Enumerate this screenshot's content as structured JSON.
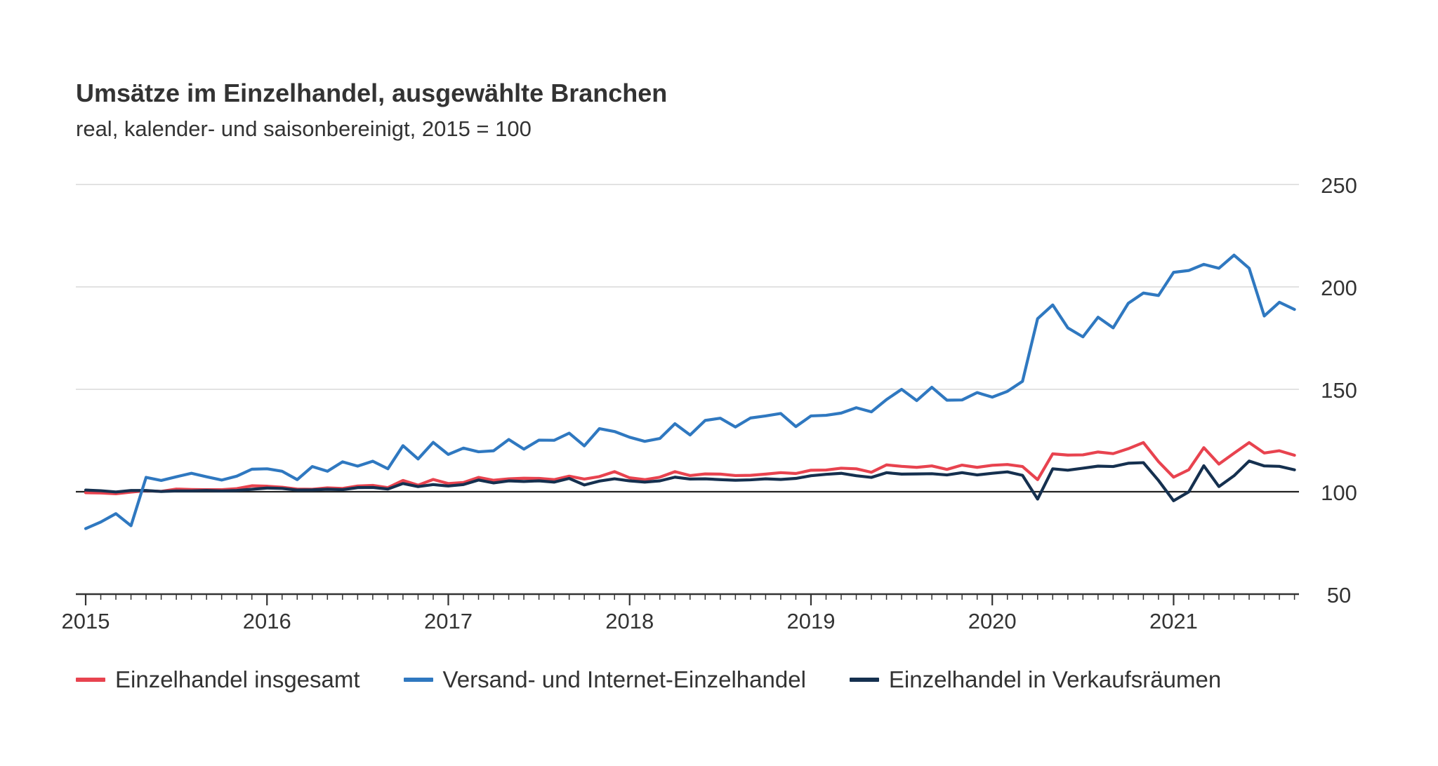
{
  "title": "Umsätze im Einzelhandel, ausgewählte Branchen",
  "subtitle": "real, kalender- und saisonbereinigt, 2015 = 100",
  "chart_data": {
    "type": "line",
    "title": "Umsätze im Einzelhandel, ausgewählte Branchen",
    "subtitle": "real, kalender- und saisonbereinigt, 2015 = 100",
    "x_start": "2015-01",
    "x_end": "2021-09",
    "x_ticks": [
      "2015",
      "2016",
      "2017",
      "2018",
      "2019",
      "2020",
      "2021"
    ],
    "y_ticks": [
      50,
      100,
      150,
      200,
      250
    ],
    "ylim": [
      50,
      250
    ],
    "baseline": 100,
    "grid": true,
    "y_axis_position": "right",
    "legend_position": "bottom",
    "series": [
      {
        "name": "Einzelhandel insgesamt",
        "color": "#e8434f",
        "values": [
          99.5,
          99.4,
          99.0,
          99.8,
          100.5,
          100.2,
          101.3,
          101.1,
          101.0,
          101.0,
          101.5,
          102.9,
          102.7,
          102.2,
          101.3,
          101.2,
          101.9,
          101.6,
          102.8,
          103.1,
          102.0,
          105.5,
          103.2,
          106.0,
          104.0,
          104.5,
          107.0,
          105.6,
          106.3,
          106.6,
          106.5,
          105.9,
          107.6,
          106.2,
          107.4,
          109.8,
          106.8,
          105.9,
          107.1,
          109.8,
          107.9,
          108.7,
          108.6,
          107.9,
          108.0,
          108.6,
          109.3,
          108.9,
          110.5,
          110.6,
          111.5,
          111.2,
          109.5,
          113.1,
          112.4,
          111.9,
          112.6,
          110.9,
          113.0,
          111.9,
          112.9,
          113.3,
          112.3,
          105.9,
          118.5,
          117.9,
          118.0,
          119.4,
          118.6,
          121.0,
          124.0,
          114.7,
          107.1,
          110.7,
          121.5,
          113.5,
          118.8,
          124.0,
          118.9,
          120.0,
          117.8
        ]
      },
      {
        "name": "Versand- und Internet-Einzelhandel",
        "color": "#2f78c0",
        "values": [
          82.0,
          85.2,
          89.3,
          83.4,
          107.0,
          105.5,
          107.3,
          109.0,
          107.3,
          105.7,
          107.6,
          111.0,
          111.2,
          110.0,
          105.9,
          112.3,
          110.0,
          114.6,
          112.5,
          114.9,
          111.2,
          122.5,
          116.0,
          124.1,
          118.2,
          121.3,
          119.5,
          120.0,
          125.5,
          120.8,
          125.2,
          125.1,
          128.6,
          122.4,
          130.8,
          129.4,
          126.6,
          124.6,
          126.0,
          133.2,
          127.7,
          134.8,
          135.9,
          131.6,
          136.0,
          137.0,
          138.2,
          131.8,
          137.0,
          137.3,
          138.4,
          141.0,
          139.0,
          145.0,
          150.0,
          144.5,
          151.0,
          144.7,
          144.8,
          148.4,
          146.2,
          149.0,
          153.9,
          184.5,
          191.2,
          180.0,
          175.6,
          185.2,
          180.0,
          192.0,
          197.0,
          195.8,
          207.1,
          208.0,
          211.0,
          209.1,
          215.5,
          209.1,
          185.8,
          192.5,
          189.0
        ]
      },
      {
        "name": "Einzelhandel in Verkaufsräumen",
        "color": "#15304f",
        "values": [
          100.8,
          100.5,
          99.9,
          100.6,
          100.6,
          100.1,
          100.4,
          100.4,
          100.6,
          100.4,
          100.6,
          101.2,
          101.8,
          101.6,
          100.8,
          100.9,
          101.2,
          101.0,
          102.0,
          102.1,
          101.3,
          104.0,
          102.5,
          103.5,
          102.8,
          103.5,
          105.7,
          104.3,
          105.3,
          105.0,
          105.3,
          104.7,
          106.5,
          103.3,
          105.2,
          106.3,
          105.3,
          104.7,
          105.3,
          107.1,
          106.2,
          106.3,
          105.9,
          105.6,
          105.8,
          106.3,
          106.0,
          106.5,
          107.8,
          108.5,
          109.0,
          107.8,
          107.0,
          109.3,
          108.6,
          108.7,
          108.8,
          108.2,
          109.3,
          108.2,
          109.0,
          109.7,
          108.0,
          96.4,
          111.2,
          110.5,
          111.5,
          112.5,
          112.3,
          113.9,
          114.2,
          105.5,
          95.6,
          99.9,
          112.7,
          102.5,
          107.8,
          115.0,
          112.6,
          112.4,
          110.7
        ]
      }
    ]
  }
}
